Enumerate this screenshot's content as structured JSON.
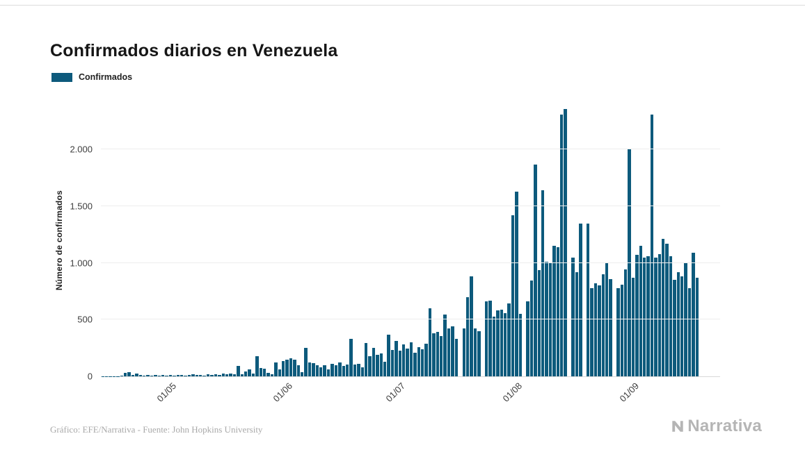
{
  "header": {
    "title": "Confirmados diarios en Venezuela"
  },
  "legend": {
    "label": "Confirmados"
  },
  "footer": {
    "credit": "Gráfico: EFE/Narrativa - Fuente: John Hopkins University",
    "brand": "Narrativa"
  },
  "chart_data": {
    "type": "bar",
    "title": "Confirmados diarios en Venezuela",
    "series_name": "Confirmados",
    "xlabel": "",
    "ylabel": "Número de confirmados",
    "bar_color": "#0d5a7c",
    "grid": true,
    "legend_position": "top-left",
    "ylim": [
      0,
      2400
    ],
    "yticks": [
      {
        "value": 0,
        "label": "0"
      },
      {
        "value": 500,
        "label": "500"
      },
      {
        "value": 1000,
        "label": "1.000"
      },
      {
        "value": 1500,
        "label": "1.500"
      },
      {
        "value": 2000,
        "label": "2.000"
      }
    ],
    "xticks": [
      {
        "index": 18,
        "label": "01/05"
      },
      {
        "index": 49,
        "label": "01/06"
      },
      {
        "index": 79,
        "label": "01/07"
      },
      {
        "index": 110,
        "label": "01/08"
      },
      {
        "index": 141,
        "label": "01/09"
      }
    ],
    "values": [
      1,
      2,
      1,
      3,
      2,
      4,
      30,
      35,
      12,
      22,
      10,
      8,
      15,
      5,
      10,
      6,
      12,
      8,
      12,
      8,
      15,
      10,
      6,
      12,
      18,
      10,
      14,
      8,
      16,
      12,
      20,
      15,
      25,
      18,
      22,
      16,
      90,
      20,
      45,
      60,
      25,
      180,
      75,
      65,
      30,
      20,
      125,
      60,
      135,
      150,
      160,
      145,
      100,
      35,
      250,
      120,
      115,
      100,
      80,
      95,
      60,
      110,
      100,
      120,
      90,
      105,
      330,
      105,
      110,
      80,
      295,
      175,
      250,
      190,
      200,
      130,
      365,
      235,
      310,
      225,
      280,
      245,
      300,
      210,
      260,
      240,
      290,
      600,
      380,
      390,
      355,
      545,
      420,
      440,
      330,
      0,
      420,
      700,
      880,
      420,
      400,
      0,
      660,
      670,
      525,
      580,
      590,
      560,
      640,
      1420,
      1630,
      550,
      0,
      660,
      845,
      1870,
      935,
      1640,
      1010,
      1000,
      1150,
      1140,
      2310,
      2360,
      0,
      1050,
      920,
      1350,
      0,
      1350,
      780,
      820,
      800,
      900,
      1000,
      860,
      0,
      780,
      810,
      940,
      2000,
      870,
      1070,
      1150,
      1050,
      1060,
      2310,
      1050,
      1080,
      1210,
      1170,
      1060,
      850,
      920,
      880,
      1000,
      780,
      1090,
      870
    ]
  }
}
